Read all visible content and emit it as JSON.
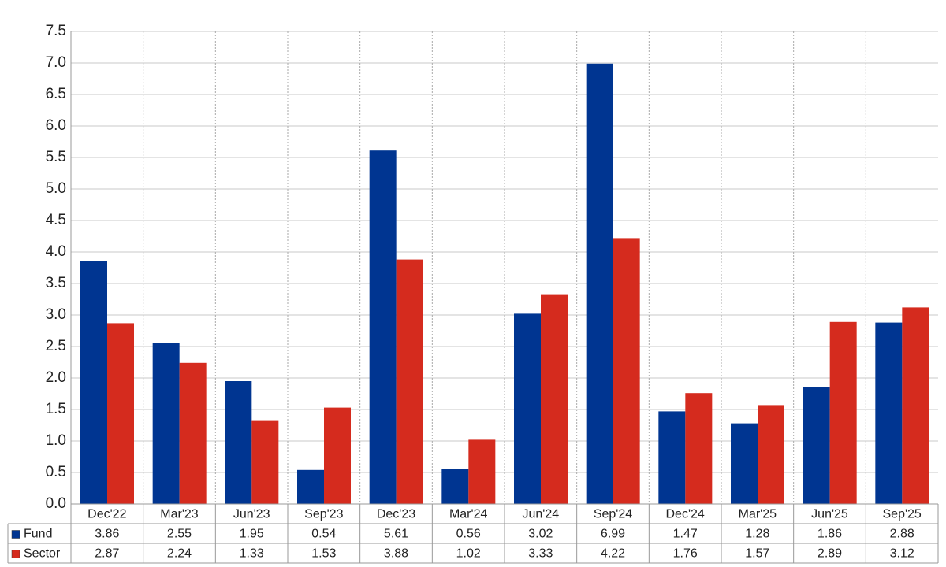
{
  "chart_data": {
    "type": "bar",
    "categories": [
      "Dec'22",
      "Mar'23",
      "Jun'23",
      "Sep'23",
      "Dec'23",
      "Mar'24",
      "Jun'24",
      "Sep'24",
      "Dec'24",
      "Mar'25",
      "Jun'25",
      "Sep'25"
    ],
    "series": [
      {
        "name": "Fund",
        "color": "#003591",
        "values": [
          3.86,
          2.55,
          1.95,
          0.54,
          5.61,
          0.56,
          3.02,
          6.99,
          1.47,
          1.28,
          1.86,
          2.88
        ]
      },
      {
        "name": "Sector",
        "color": "#d52b1e",
        "values": [
          2.87,
          2.24,
          1.33,
          1.53,
          3.88,
          1.02,
          3.33,
          4.22,
          1.76,
          1.57,
          2.89,
          3.12
        ]
      }
    ],
    "ylim": [
      0,
      7.5
    ],
    "yticks": [
      {
        "value": 0,
        "label": "0.0"
      },
      0.5,
      {
        "value": 1,
        "label": "1.0"
      },
      1.5,
      {
        "value": 2,
        "label": "2.0"
      },
      2.5,
      {
        "value": 3,
        "label": "3.0"
      },
      3.5,
      {
        "value": 4,
        "label": "4.0"
      },
      4.5,
      {
        "value": 5,
        "label": "5.0"
      },
      5.5,
      {
        "value": 6,
        "label": "6.0"
      },
      6.5,
      {
        "value": 7,
        "label": "7.0"
      },
      7.5
    ],
    "grid": true
  }
}
